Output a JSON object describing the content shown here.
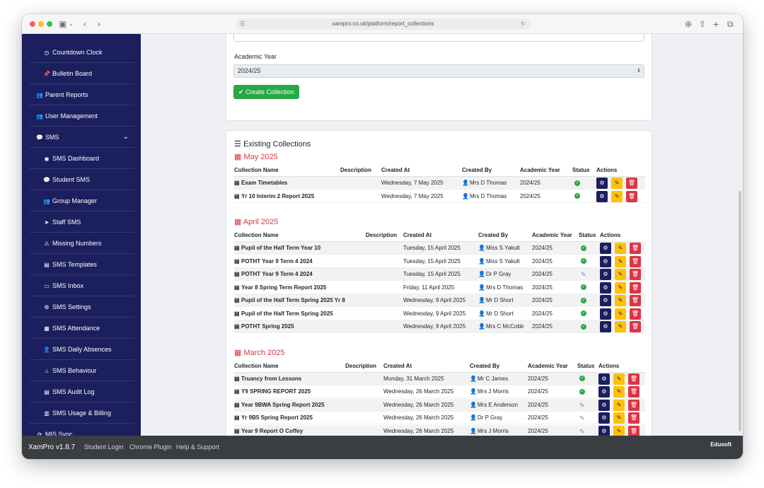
{
  "browser": {
    "url": "xampro.co.uk/platform/report_collections"
  },
  "sidebar": {
    "items": [
      {
        "label": "Countdown Clock",
        "icon": "clock-icon",
        "glyph": "◷",
        "level": "sub"
      },
      {
        "label": "Bulletin Board",
        "icon": "pin-icon",
        "glyph": "📌",
        "level": "sub"
      },
      {
        "label": "Parent Reports",
        "icon": "users-icon",
        "glyph": "👥",
        "level": "top"
      },
      {
        "label": "User Management",
        "icon": "users-cog-icon",
        "glyph": "👥",
        "level": "top"
      },
      {
        "label": "SMS",
        "icon": "chat-icon",
        "glyph": "💬",
        "level": "top"
      },
      {
        "label": "SMS Dashboard",
        "icon": "dashboard-icon",
        "glyph": "◉",
        "level": "sub"
      },
      {
        "label": "Student SMS",
        "icon": "comments-icon",
        "glyph": "💬",
        "level": "sub"
      },
      {
        "label": "Group Manager",
        "icon": "group-icon",
        "glyph": "👥",
        "level": "sub"
      },
      {
        "label": "Staff SMS",
        "icon": "send-icon",
        "glyph": "➤",
        "level": "sub"
      },
      {
        "label": "Missing Numbers",
        "icon": "warning-icon",
        "glyph": "⚠",
        "level": "sub"
      },
      {
        "label": "SMS Templates",
        "icon": "file-icon",
        "glyph": "▤",
        "level": "sub"
      },
      {
        "label": "SMS Inbox",
        "icon": "inbox-icon",
        "glyph": "▭",
        "level": "sub"
      },
      {
        "label": "SMS Settings",
        "icon": "plug-icon",
        "glyph": "⚙",
        "level": "sub"
      },
      {
        "label": "SMS Attendance",
        "icon": "calendar-icon",
        "glyph": "▦",
        "level": "sub"
      },
      {
        "label": "SMS Daily Absences",
        "icon": "user-plus-icon",
        "glyph": "👤",
        "level": "sub"
      },
      {
        "label": "SMS Behaviour",
        "icon": "school-icon",
        "glyph": "⌂",
        "level": "sub"
      },
      {
        "label": "SMS Audit Log",
        "icon": "log-icon",
        "glyph": "▤",
        "level": "sub"
      },
      {
        "label": "SMS Usage & Billing",
        "icon": "chart-icon",
        "glyph": "▥",
        "level": "sub"
      },
      {
        "label": "MIS Sync",
        "icon": "sync-icon",
        "glyph": "⟳",
        "level": "top"
      }
    ]
  },
  "form": {
    "academic_year_label": "Academic Year",
    "academic_year_value": "2024/25",
    "create_button": "Create Collection"
  },
  "collections": {
    "title": "Existing Collections",
    "columns": {
      "name": "Collection Name",
      "description": "Description",
      "created_at": "Created At",
      "created_by": "Created By",
      "academic_year": "Academic Year",
      "status": "Status",
      "actions": "Actions"
    },
    "groups": [
      {
        "month": "May 2025",
        "rows": [
          {
            "name": "Exam Timetables",
            "description": "",
            "created_at": "Wednesday, 7 May 2025",
            "created_by": "Mrs D Thomas",
            "academic_year": "2024/25",
            "status": "published"
          },
          {
            "name": "Yr 10 Interim 2 Report 2025",
            "description": "",
            "created_at": "Wednesday, 7 May 2025",
            "created_by": "Mrs D Thomas",
            "academic_year": "2024/25",
            "status": "published"
          }
        ]
      },
      {
        "month": "April 2025",
        "rows": [
          {
            "name": "Pupil of the Half Term Year 10",
            "description": "",
            "created_at": "Tuesday, 15 April 2025",
            "created_by": "Miss S Yakult",
            "academic_year": "2024/25",
            "status": "published"
          },
          {
            "name": "POTHT Year 9 Term 4 2024",
            "description": "",
            "created_at": "Tuesday, 15 April 2025",
            "created_by": "Miss S Yakult",
            "academic_year": "2024/25",
            "status": "published"
          },
          {
            "name": "POTHT Year 9 Term 4 2024",
            "description": "",
            "created_at": "Tuesday, 15 April 2025",
            "created_by": "Dr P Gray",
            "academic_year": "2024/25",
            "status": "draft"
          },
          {
            "name": "Year 8 Spring Term Report 2025",
            "description": "",
            "created_at": "Friday, 11 April 2025",
            "created_by": "Mrs D Thomas",
            "academic_year": "2024/25",
            "status": "published"
          },
          {
            "name": "Pupil of the Half Term Spring 2025 Yr 8",
            "description": "",
            "created_at": "Wednesday, 9 April 2025",
            "created_by": "Mr D Short",
            "academic_year": "2024/25",
            "status": "published"
          },
          {
            "name": "Pupil of the Half Term Spring 2025",
            "description": "",
            "created_at": "Wednesday, 9 April 2025",
            "created_by": "Mr D Short",
            "academic_year": "2024/25",
            "status": "published"
          },
          {
            "name": "POTHT Spring 2025",
            "description": "",
            "created_at": "Wednesday, 9 April 2025",
            "created_by": "Mrs C McCobb",
            "academic_year": "2024/25",
            "status": "published"
          }
        ]
      },
      {
        "month": "March 2025",
        "rows": [
          {
            "name": "Truancy from Lessons",
            "description": "",
            "created_at": "Monday, 31 March 2025",
            "created_by": "Mr C James",
            "academic_year": "2024/25",
            "status": "published"
          },
          {
            "name": "Y9 SPRING REPORT 2025",
            "description": "",
            "created_at": "Wednesday, 26 March 2025",
            "created_by": "Mrs J Morris",
            "academic_year": "2024/25",
            "status": "published"
          },
          {
            "name": "Year 9BWA Spring Report 2025",
            "description": "",
            "created_at": "Wednesday, 26 March 2025",
            "created_by": "Mrs E Anderson",
            "academic_year": "2024/25",
            "status": "draft"
          },
          {
            "name": "Yr 9B5 Spring Report 2025",
            "description": "",
            "created_at": "Wednesday, 26 March 2025",
            "created_by": "Dr P Gray",
            "academic_year": "2024/25",
            "status": "draft"
          },
          {
            "name": "Year 9 Report O Coffey",
            "description": "",
            "created_at": "Wednesday, 26 March 2025",
            "created_by": "Mrs J Morris",
            "academic_year": "2024/25",
            "status": "draft"
          }
        ]
      }
    ]
  },
  "footer": {
    "brand": "XamPro v1.8.7",
    "links": [
      "Student Login",
      "Chrome Plugin",
      "Help & Support"
    ],
    "logo": "Edusoft"
  },
  "colors": {
    "sidebar": "#1b1f5e",
    "success": "#28a745",
    "danger": "#dc3545",
    "warning": "#ffc107",
    "footer": "#3a3d42"
  }
}
